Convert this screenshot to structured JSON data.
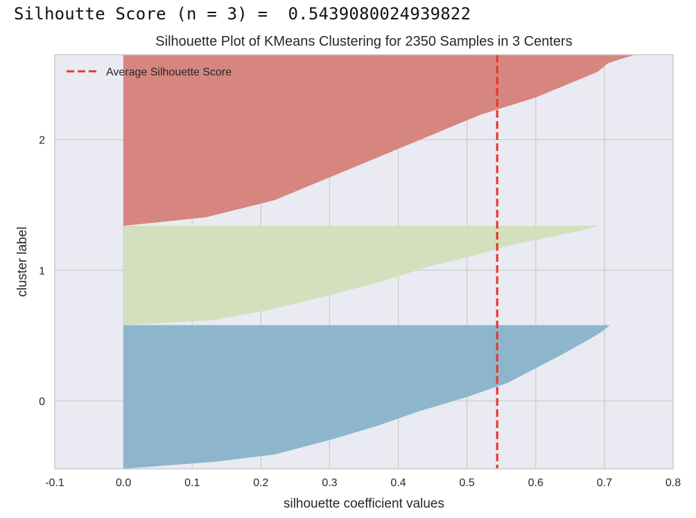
{
  "output": {
    "score_line": "Silhoutte Score (n = 3) =  0.5439080024939822"
  },
  "colors": {
    "background": "#eaeaf2",
    "grid": "#cccccc",
    "cluster_0": "#8db6cd",
    "cluster_1": "#d4e0bd",
    "cluster_2": "#d7857f",
    "average_line": "#e8372c"
  },
  "chart_data": {
    "type": "area",
    "title": "Silhouette Plot of KMeans Clustering for 2350 Samples in 3 Centers",
    "xlabel": "silhouette coefficient values",
    "ylabel": "cluster label",
    "xlim": [
      -0.1,
      0.8
    ],
    "x_ticks": [
      "-0.1",
      "0.0",
      "0.1",
      "0.2",
      "0.3",
      "0.4",
      "0.5",
      "0.6",
      "0.7",
      "0.8"
    ],
    "y_ticks": [
      "0",
      "1",
      "2"
    ],
    "y_tick_values": [
      0,
      1,
      2
    ],
    "ylim": [
      -0.52,
      2.65
    ],
    "grid": true,
    "legend": {
      "position": "top-left",
      "entries": [
        "Average Silhouette Score"
      ]
    },
    "average_silhouette_score": 0.5439080024939822,
    "series": [
      {
        "name": "0",
        "band": [
          -0.52,
          0.58
        ],
        "profile": [
          [
            0.0,
            0.0
          ],
          [
            0.05,
            0.135
          ],
          [
            0.1,
            0.22
          ],
          [
            0.2,
            0.3
          ],
          [
            0.3,
            0.37
          ],
          [
            0.4,
            0.43
          ],
          [
            0.5,
            0.5
          ],
          [
            0.6,
            0.56
          ],
          [
            0.7,
            0.6
          ],
          [
            0.8,
            0.64
          ],
          [
            0.88,
            0.67
          ],
          [
            0.95,
            0.695
          ],
          [
            1.0,
            0.708
          ]
        ]
      },
      {
        "name": "1",
        "band": [
          0.58,
          1.34
        ],
        "profile": [
          [
            0.0,
            0.0
          ],
          [
            0.05,
            0.13
          ],
          [
            0.15,
            0.21
          ],
          [
            0.3,
            0.3
          ],
          [
            0.45,
            0.38
          ],
          [
            0.6,
            0.45
          ],
          [
            0.7,
            0.51
          ],
          [
            0.8,
            0.56
          ],
          [
            0.9,
            0.63
          ],
          [
            0.95,
            0.665
          ],
          [
            1.0,
            0.692
          ]
        ]
      },
      {
        "name": "2",
        "band": [
          1.34,
          2.65
        ],
        "profile": [
          [
            0.0,
            0.0
          ],
          [
            0.05,
            0.12
          ],
          [
            0.15,
            0.22
          ],
          [
            0.3,
            0.31
          ],
          [
            0.45,
            0.4
          ],
          [
            0.55,
            0.46
          ],
          [
            0.65,
            0.52
          ],
          [
            0.75,
            0.6
          ],
          [
            0.85,
            0.66
          ],
          [
            0.9,
            0.69
          ],
          [
            0.95,
            0.705
          ],
          [
            0.97,
            0.72
          ],
          [
            1.0,
            0.745
          ]
        ]
      }
    ]
  }
}
